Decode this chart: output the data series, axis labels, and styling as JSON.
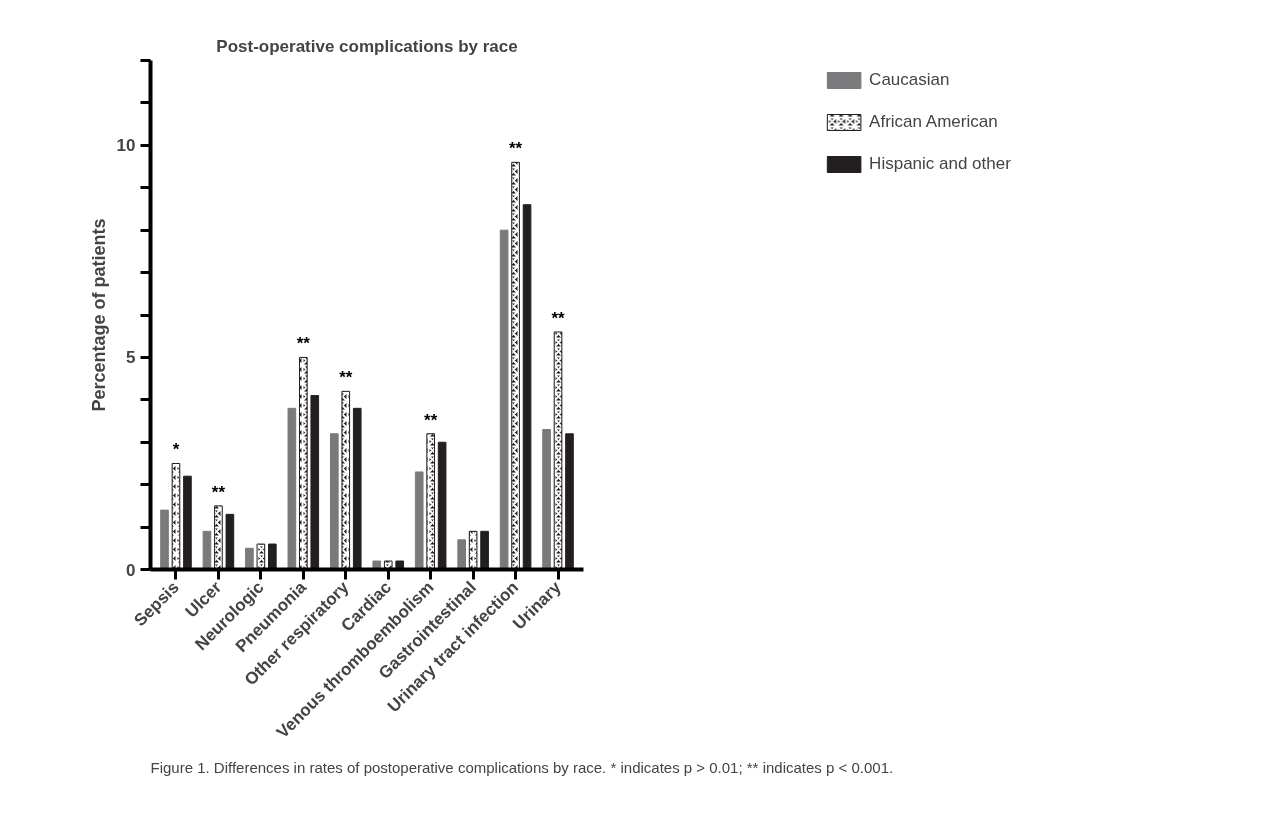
{
  "chart_data": {
    "type": "bar",
    "title": "Post-operative complications by race",
    "ylabel": "Percentage of patients",
    "categories": [
      "Sepsis",
      "Ulcer",
      "Neurologic",
      "Pneumonia",
      "Other respiratory",
      "Cardiac",
      "Venous thromboembolism",
      "Gastrointestinal",
      "Urinary tract infection",
      "Urinary"
    ],
    "series": [
      {
        "name": "Caucasian",
        "color": "#7a7a7c",
        "values": [
          1.4,
          0.9,
          0.5,
          3.8,
          3.2,
          0.2,
          2.3,
          0.7,
          8.0,
          3.3
        ]
      },
      {
        "name": "African American",
        "color": "#231f20",
        "values": [
          2.5,
          1.5,
          0.6,
          5.0,
          4.2,
          0.2,
          3.2,
          0.9,
          9.6,
          5.6
        ]
      },
      {
        "name": "Hispanic and other",
        "color": "#231f20",
        "values": [
          2.2,
          1.3,
          0.6,
          4.1,
          3.8,
          0.2,
          3.0,
          0.9,
          8.6,
          3.2
        ]
      }
    ],
    "ylim": [
      0,
      12
    ],
    "yticks": [
      0,
      {
        "value": 1,
        "label": null
      },
      {
        "value": 2,
        "label": null
      },
      {
        "value": 3,
        "label": null
      },
      {
        "value": 4,
        "label": null
      },
      5,
      {
        "value": 6,
        "label": null
      },
      {
        "value": 7,
        "label": null
      },
      {
        "value": 8,
        "label": null
      },
      {
        "value": 9,
        "label": null
      },
      10,
      {
        "value": 11,
        "label": null
      },
      {
        "value": 12,
        "label": null
      }
    ],
    "grid": false,
    "legend": "right",
    "annotations": [
      {
        "text": "*",
        "x": "Sepsis",
        "y": 2.5
      },
      {
        "text": "**",
        "x": "Ulcer",
        "y": 1.5
      },
      {
        "text": "**",
        "x": "Pneumonia",
        "y": 5.0
      },
      {
        "text": "**",
        "x": "Other respiratory",
        "y": 4.2
      },
      {
        "text": "**",
        "x": "Venous thromboembolism",
        "y": 3.2
      },
      {
        "text": "**",
        "x": "Urinary tract infection",
        "y": 9.6
      },
      {
        "text": "**",
        "x": "Urinary",
        "y": 5.6
      },
      "Figure 1.   Differences in rates of postoperative complications by race. * indicates p > 0.01; ** indicates p < 0.001."
    ]
  }
}
